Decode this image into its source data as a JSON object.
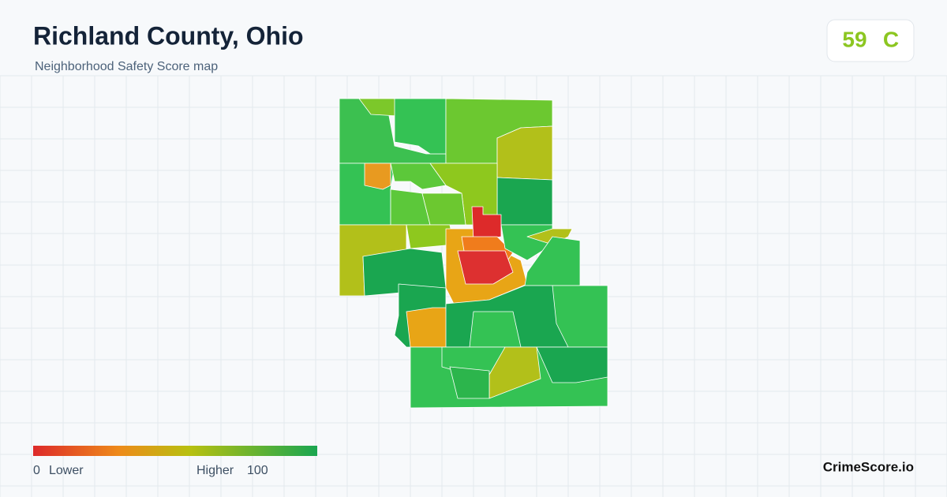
{
  "header": {
    "title": "Richland County, Ohio",
    "subtitle": "Neighborhood Safety Score map"
  },
  "score": {
    "value": 59,
    "grade": "C"
  },
  "legend": {
    "min": 0,
    "min_label": "Lower",
    "max_label": "Higher",
    "max": 100
  },
  "brand": "CrimeScore.io"
}
